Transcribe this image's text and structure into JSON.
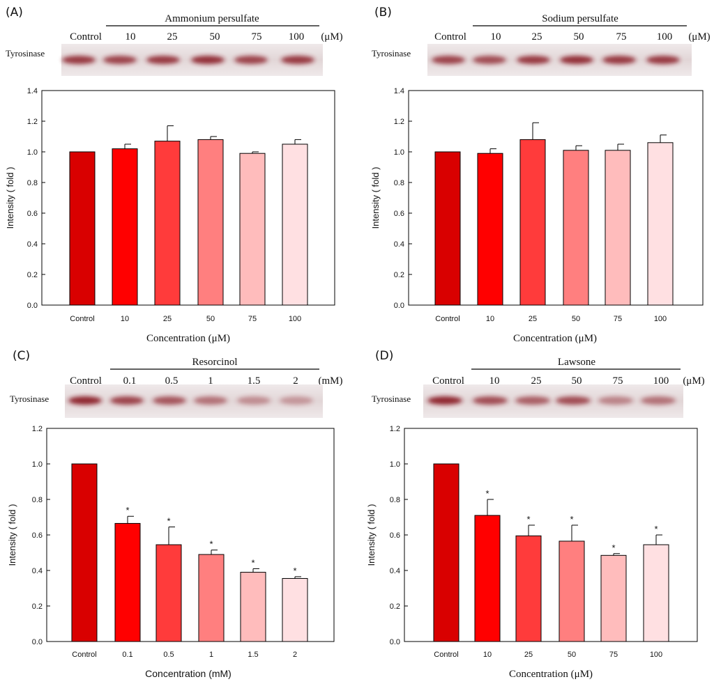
{
  "colors": {
    "bars": [
      "#d90000",
      "#ff0000",
      "#ff3b3b",
      "#ff7f7f",
      "#ffbcbc",
      "#ffe0e2"
    ],
    "axis": "#000000",
    "blot_band": "#8a1f25"
  },
  "chart_data": [
    {
      "panel": "(A)",
      "type": "bar",
      "treatment": "Ammonium persulfate",
      "blot_label": "Tyrosinase",
      "lane_labels": [
        "Control",
        "10",
        "25",
        "50",
        "75",
        "100"
      ],
      "unit": "(μM)",
      "categories": [
        "Control",
        "10",
        "25",
        "50",
        "75",
        "100"
      ],
      "values": [
        1.0,
        1.02,
        1.07,
        1.08,
        0.99,
        1.05
      ],
      "errors": [
        0,
        0.03,
        0.1,
        0.02,
        0.01,
        0.03
      ],
      "significant": [
        false,
        false,
        false,
        false,
        false,
        false
      ],
      "blot_intensity": [
        0.85,
        0.8,
        0.85,
        0.9,
        0.8,
        0.85
      ],
      "ylabel": "Intensity ( fold )",
      "xlabel": "Concentration (μM)",
      "ylim": [
        0,
        1.4
      ],
      "yticks": [
        "0.0",
        "0.2",
        "0.4",
        "0.6",
        "0.8",
        "1.0",
        "1.2",
        "1.4"
      ],
      "significance_mark": "*"
    },
    {
      "panel": "(B)",
      "type": "bar",
      "treatment": "Sodium persulfate",
      "blot_label": "Tyrosinase",
      "lane_labels": [
        "Control",
        "10",
        "25",
        "50",
        "75",
        "100"
      ],
      "unit": "(μM)",
      "categories": [
        "Control",
        "10",
        "25",
        "50",
        "75",
        "100"
      ],
      "values": [
        1.0,
        0.99,
        1.08,
        1.01,
        1.01,
        1.06
      ],
      "errors": [
        0,
        0.03,
        0.11,
        0.03,
        0.04,
        0.05
      ],
      "significant": [
        false,
        false,
        false,
        false,
        false,
        false
      ],
      "blot_intensity": [
        0.8,
        0.75,
        0.85,
        0.9,
        0.85,
        0.85
      ],
      "ylabel": "Intensity ( fold )",
      "xlabel": "Concentration (μM)",
      "ylim": [
        0,
        1.4
      ],
      "yticks": [
        "0.0",
        "0.2",
        "0.4",
        "0.6",
        "0.8",
        "1.0",
        "1.2",
        "1.4"
      ],
      "significance_mark": "*"
    },
    {
      "panel": "(C)",
      "type": "bar",
      "treatment": "Resorcinol",
      "blot_label": "Tyrosinase",
      "lane_labels": [
        "Control",
        "0.1",
        "0.5",
        "1",
        "1.5",
        "2"
      ],
      "unit": "(mM)",
      "categories": [
        "Control",
        "0.1",
        "0.5",
        "1",
        "1.5",
        "2"
      ],
      "values": [
        1.0,
        0.665,
        0.545,
        0.49,
        0.39,
        0.355
      ],
      "errors": [
        0,
        0.04,
        0.1,
        0.025,
        0.02,
        0.01
      ],
      "significant": [
        false,
        true,
        true,
        true,
        true,
        true
      ],
      "blot_intensity": [
        0.95,
        0.8,
        0.7,
        0.55,
        0.4,
        0.35
      ],
      "ylabel": "Intensity ( fold )",
      "xlabel": "Concentration (mM)",
      "ylim": [
        0,
        1.2
      ],
      "yticks": [
        "0.0",
        "0.2",
        "0.4",
        "0.6",
        "0.8",
        "1.0",
        "1.2"
      ],
      "significance_mark": "*"
    },
    {
      "panel": "(D)",
      "type": "bar",
      "treatment": "Lawsone",
      "blot_label": "Tyrosinase",
      "lane_labels": [
        "Control",
        "10",
        "25",
        "50",
        "75",
        "100"
      ],
      "unit": "(μM)",
      "categories": [
        "Control",
        "10",
        "25",
        "50",
        "75",
        "100"
      ],
      "values": [
        1.0,
        0.71,
        0.595,
        0.565,
        0.485,
        0.545
      ],
      "errors": [
        0,
        0.09,
        0.06,
        0.09,
        0.01,
        0.055
      ],
      "significant": [
        false,
        true,
        true,
        true,
        true,
        true
      ],
      "blot_intensity": [
        0.95,
        0.75,
        0.65,
        0.75,
        0.45,
        0.55
      ],
      "ylabel": "Intensity ( fold )",
      "xlabel": "Concentration (μM)",
      "ylim": [
        0,
        1.2
      ],
      "yticks": [
        "0.0",
        "0.2",
        "0.4",
        "0.6",
        "0.8",
        "1.0",
        "1.2"
      ],
      "significance_mark": "*"
    }
  ]
}
